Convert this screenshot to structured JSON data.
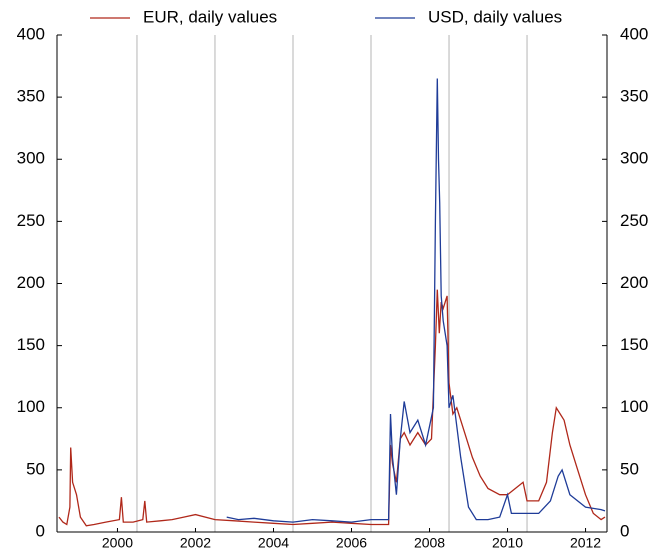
{
  "chart_data": {
    "type": "line",
    "series": [
      {
        "name": "EUR, daily values",
        "color": "#b0281a",
        "x": [
          1999.0,
          1999.1,
          1999.2,
          1999.28,
          1999.3,
          1999.35,
          1999.45,
          1999.55,
          1999.7,
          1999.9,
          2000.2,
          2000.55,
          2000.6,
          2000.65,
          2000.9,
          2001.15,
          2001.2,
          2001.25,
          2001.6,
          2001.9,
          2002.2,
          2002.5,
          2003.0,
          2003.5,
          2004.0,
          2004.5,
          2005.0,
          2005.5,
          2006.0,
          2006.5,
          2007.0,
          2007.45,
          2007.5,
          2007.55,
          2007.65,
          2007.75,
          2007.85,
          2008.0,
          2008.2,
          2008.4,
          2008.55,
          2008.65,
          2008.7,
          2008.75,
          2008.8,
          2008.85,
          2008.95,
          2009.0,
          2009.1,
          2009.2,
          2009.4,
          2009.6,
          2009.8,
          2010.0,
          2010.3,
          2010.5,
          2010.7,
          2010.9,
          2011.0,
          2011.3,
          2011.5,
          2011.65,
          2011.75,
          2011.85,
          2011.95,
          2012.1,
          2012.3,
          2012.5,
          2012.7,
          2012.9,
          2013.0
        ],
        "values": [
          12,
          8,
          6,
          20,
          68,
          40,
          30,
          12,
          5,
          6,
          8,
          10,
          28,
          8,
          8,
          10,
          25,
          8,
          9,
          10,
          12,
          14,
          10,
          9,
          8,
          7,
          6,
          7,
          8,
          7,
          6,
          6,
          70,
          55,
          40,
          75,
          80,
          70,
          80,
          70,
          75,
          150,
          195,
          160,
          185,
          180,
          190,
          120,
          95,
          100,
          80,
          60,
          45,
          35,
          30,
          30,
          35,
          40,
          25,
          25,
          40,
          80,
          100,
          95,
          90,
          70,
          50,
          30,
          15,
          10,
          12
        ]
      },
      {
        "name": "USD, daily values",
        "color": "#1f3c98",
        "x": [
          2003.3,
          2003.6,
          2004.0,
          2004.5,
          2005.0,
          2005.5,
          2006.0,
          2006.5,
          2007.0,
          2007.45,
          2007.5,
          2007.55,
          2007.65,
          2007.75,
          2007.85,
          2008.0,
          2008.2,
          2008.4,
          2008.6,
          2008.65,
          2008.7,
          2008.73,
          2008.76,
          2008.8,
          2008.85,
          2008.95,
          2009.0,
          2009.1,
          2009.3,
          2009.5,
          2009.7,
          2010.0,
          2010.3,
          2010.5,
          2010.6,
          2010.9,
          2011.3,
          2011.6,
          2011.8,
          2011.9,
          2012.1,
          2012.5,
          2012.9,
          2013.0
        ],
        "values": [
          12,
          10,
          11,
          9,
          8,
          10,
          9,
          8,
          10,
          10,
          95,
          60,
          30,
          75,
          105,
          80,
          90,
          70,
          100,
          250,
          365,
          300,
          265,
          190,
          170,
          150,
          100,
          110,
          60,
          20,
          10,
          10,
          12,
          30,
          15,
          15,
          15,
          25,
          45,
          50,
          30,
          20,
          18,
          17
        ]
      }
    ],
    "xlim": [
      1998.95,
      2013.05
    ],
    "xticks": [
      {
        "value": 2000.5,
        "label": "2000"
      },
      {
        "value": 2002.5,
        "label": "2002"
      },
      {
        "value": 2004.5,
        "label": "2004"
      },
      {
        "value": 2006.5,
        "label": "2006"
      },
      {
        "value": 2008.5,
        "label": "2008"
      },
      {
        "value": 2010.5,
        "label": "2010"
      },
      {
        "value": 2012.5,
        "label": "2012"
      }
    ],
    "xgrid": [
      2001,
      2003,
      2005,
      2007,
      2009,
      2011
    ],
    "ylim": [
      0,
      400
    ],
    "yticks": [
      0,
      50,
      100,
      150,
      200,
      250,
      300,
      350,
      400
    ],
    "y2lim": [
      0,
      400
    ],
    "y2ticks": [
      0,
      50,
      100,
      150,
      200,
      250,
      300,
      350,
      400
    ],
    "legend": "top"
  }
}
